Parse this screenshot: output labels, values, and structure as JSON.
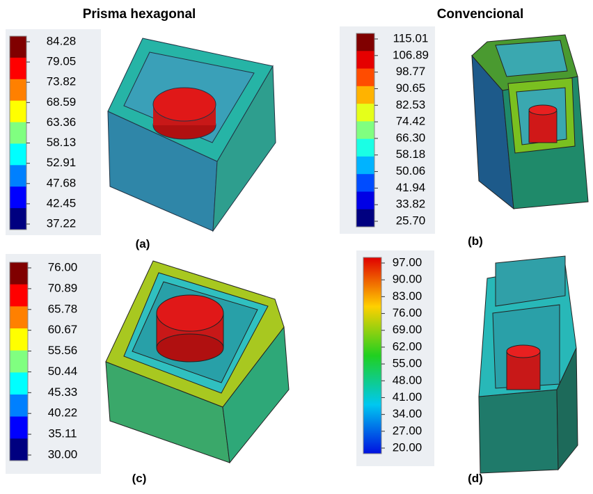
{
  "header": {
    "left": "Prisma hexagonal",
    "right": "Convencional"
  },
  "panels": [
    {
      "label": "(a)",
      "scale": [
        "84.28",
        "79.05",
        "73.82",
        "68.59",
        "63.36",
        "58.13",
        "52.91",
        "47.68",
        "42.45",
        "37.22"
      ]
    },
    {
      "label": "(b)",
      "scale": [
        "115.01",
        "106.89",
        "98.77",
        "90.65",
        "82.53",
        "74.42",
        "66.30",
        "58.18",
        "50.06",
        "41.94",
        "33.82",
        "25.70"
      ]
    },
    {
      "label": "(c)",
      "scale": [
        "76.00",
        "70.89",
        "65.78",
        "60.67",
        "55.56",
        "50.44",
        "45.33",
        "40.22",
        "35.11",
        "30.00"
      ]
    },
    {
      "label": "(d)",
      "scale": [
        "97.00",
        "90.00",
        "83.00",
        "76.00",
        "69.00",
        "62.00",
        "55.00",
        "48.00",
        "41.00",
        "34.00",
        "27.00",
        "20.00"
      ]
    }
  ]
}
